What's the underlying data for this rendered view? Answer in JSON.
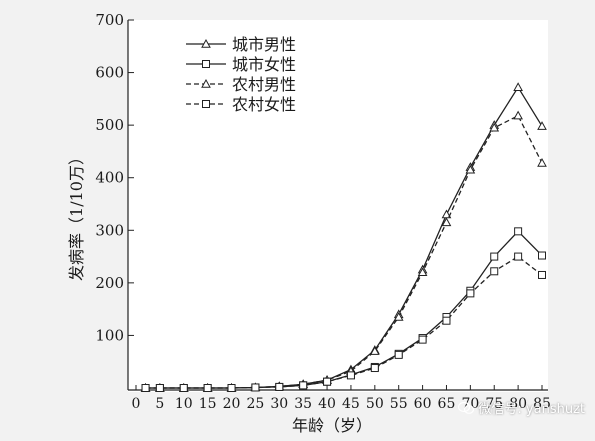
{
  "chart_data": {
    "type": "line",
    "title": "",
    "xlabel": "年龄（岁）",
    "ylabel": "发病率（1/10万）",
    "xlim": [
      0,
      85
    ],
    "ylim": [
      0,
      700
    ],
    "x_ticks": [
      0,
      5,
      10,
      15,
      20,
      25,
      30,
      35,
      40,
      45,
      50,
      55,
      60,
      65,
      70,
      75,
      80,
      85
    ],
    "y_ticks": [
      100,
      200,
      300,
      400,
      500,
      600,
      700
    ],
    "legend_position": "top-left",
    "grid": false,
    "x": [
      2,
      5,
      10,
      15,
      20,
      25,
      30,
      35,
      40,
      45,
      50,
      55,
      60,
      65,
      70,
      75,
      80,
      85
    ],
    "series": [
      {
        "name": "城市男性",
        "marker": "triangle",
        "dash": "solid",
        "values": [
          0,
          0,
          0,
          0,
          0,
          1,
          3,
          7,
          15,
          35,
          72,
          140,
          225,
          330,
          420,
          500,
          572,
          498
        ]
      },
      {
        "name": "城市女性",
        "marker": "square",
        "dash": "solid",
        "values": [
          0,
          0,
          0,
          0,
          0,
          1,
          2,
          5,
          12,
          25,
          40,
          65,
          95,
          135,
          185,
          250,
          298,
          252
        ]
      },
      {
        "name": "农村男性",
        "marker": "triangle",
        "dash": "dashed",
        "values": [
          0,
          0,
          0,
          0,
          0,
          1,
          3,
          7,
          15,
          32,
          70,
          135,
          220,
          315,
          415,
          495,
          518,
          428
        ]
      },
      {
        "name": "农村女性",
        "marker": "square",
        "dash": "dashed",
        "values": [
          0,
          0,
          0,
          0,
          0,
          1,
          2,
          5,
          12,
          24,
          38,
          63,
          92,
          128,
          180,
          222,
          250,
          215
        ]
      }
    ]
  },
  "watermark": {
    "text": "微信号: yanshuzt",
    "icon": "wechat-icon"
  }
}
